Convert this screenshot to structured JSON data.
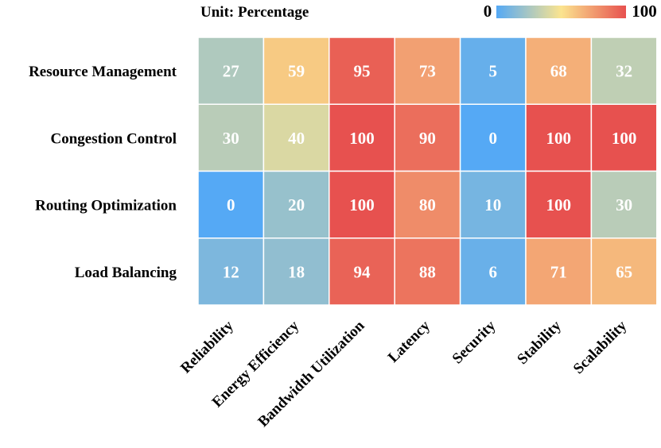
{
  "chart_data": {
    "type": "heatmap",
    "title": "Unit: Percentage",
    "rows": [
      "Resource Management",
      "Congestion Control",
      "Routing Optimization",
      "Load Balancing"
    ],
    "columns": [
      "Reliability",
      "Energy Efficiency",
      "Bandwidth Utilization",
      "Latency",
      "Security",
      "Stability",
      "Scalability"
    ],
    "values": [
      [
        27,
        59,
        95,
        73,
        5,
        68,
        32
      ],
      [
        30,
        40,
        100,
        90,
        0,
        100,
        100
      ],
      [
        0,
        20,
        100,
        80,
        10,
        100,
        30
      ],
      [
        12,
        18,
        94,
        88,
        6,
        71,
        65
      ]
    ],
    "colorbar": {
      "min": 0,
      "max": 100,
      "min_label": "0",
      "max_label": "100"
    },
    "colormap": [
      "#55a9f5",
      "#fbe48f",
      "#e7514f"
    ]
  }
}
